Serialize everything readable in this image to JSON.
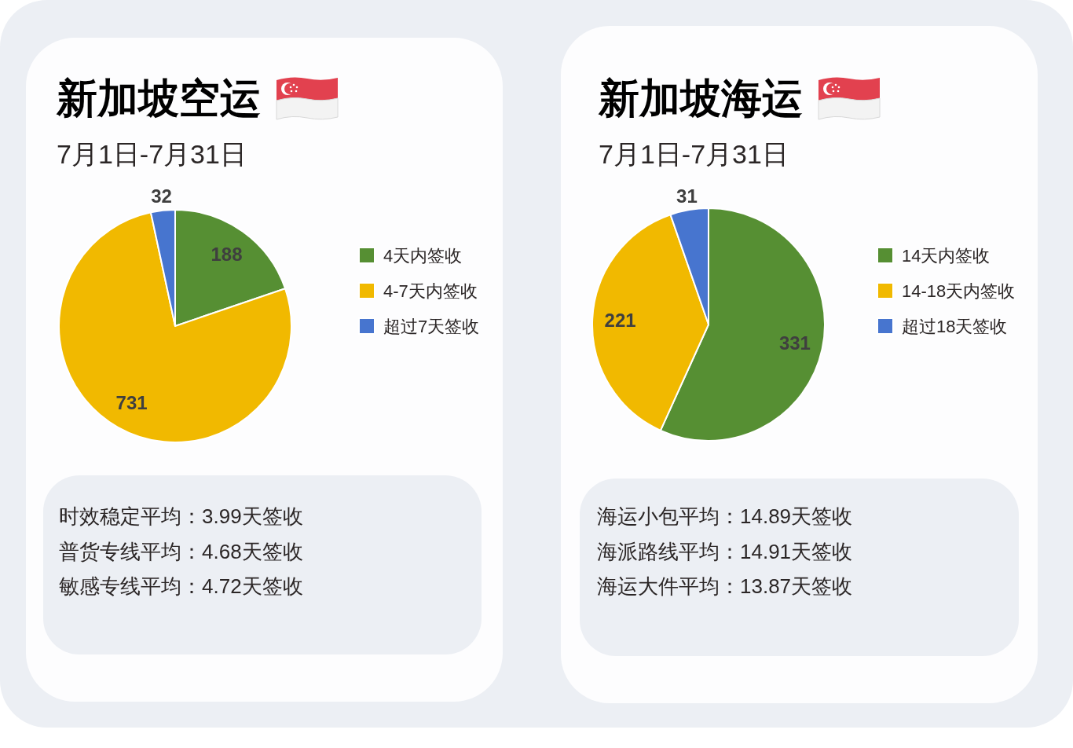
{
  "chart_data": [
    {
      "type": "pie",
      "title": "新加坡空运",
      "subtitle": "7月1日-7月31日",
      "categories": [
        "4天内签收",
        "4-7天内签收",
        "超过7天签收"
      ],
      "values": [
        188,
        731,
        32
      ],
      "colors": [
        "#568f33",
        "#f1b900",
        "#4775cf"
      ],
      "data_labels": true,
      "legend": "right",
      "annotations": [
        "时效稳定平均：3.99天签收",
        "普货专线平均：4.68天签收",
        "敏感专线平均：4.72天签收"
      ]
    },
    {
      "type": "pie",
      "title": "新加坡海运",
      "subtitle": "7月1日-7月31日",
      "categories": [
        "14天内签收",
        "14-18天内签收",
        "超过18天签收"
      ],
      "values": [
        331,
        221,
        31
      ],
      "colors": [
        "#568f33",
        "#f1b900",
        "#4775cf"
      ],
      "data_labels": true,
      "legend": "right",
      "annotations": [
        "海运小包平均：14.89天签收",
        "海派路线平均：14.91天签收",
        "海运大件平均：13.87天签收"
      ]
    }
  ]
}
